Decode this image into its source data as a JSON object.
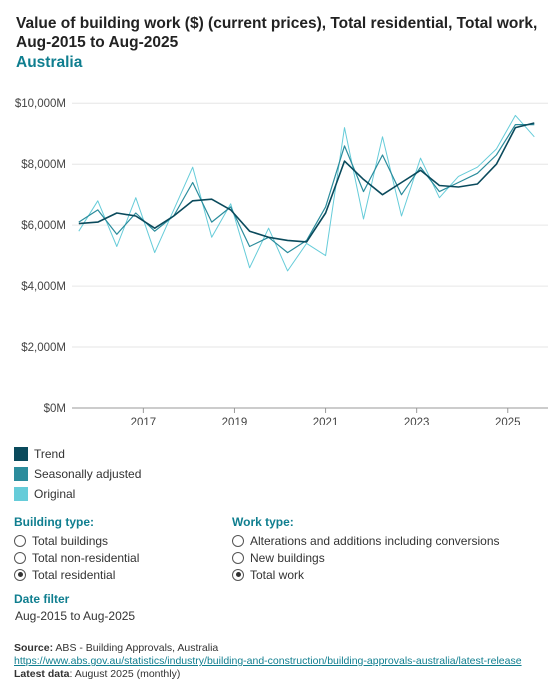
{
  "header": {
    "title": "Value of building work ($) (current prices), Total residential, Total work, Aug-2015 to Aug-2025",
    "subtitle": "Australia"
  },
  "chart_data": {
    "type": "line",
    "x_range": [
      "2015-08",
      "2025-08"
    ],
    "ylim": [
      0,
      10500
    ],
    "y_ticks": [
      {
        "value": 0,
        "label": "$0M"
      },
      {
        "value": 2000,
        "label": "$2,000M"
      },
      {
        "value": 4000,
        "label": "$4,000M"
      },
      {
        "value": 6000,
        "label": "$6,000M"
      },
      {
        "value": 8000,
        "label": "$8,000M"
      },
      {
        "value": 10000,
        "label": "$10,000M"
      }
    ],
    "x_ticks": [
      "2017",
      "2019",
      "2021",
      "2023",
      "2025"
    ],
    "grid": true,
    "legend_position": "bottom-left",
    "series": [
      {
        "name": "Original",
        "color": "#66ccd9",
        "x": [
          "2015-08",
          "2016-01",
          "2016-06",
          "2016-11",
          "2017-04",
          "2017-09",
          "2018-02",
          "2018-07",
          "2018-12",
          "2019-05",
          "2019-10",
          "2020-03",
          "2020-08",
          "2021-01",
          "2021-06",
          "2021-11",
          "2022-04",
          "2022-09",
          "2023-02",
          "2023-07",
          "2023-12",
          "2024-05",
          "2024-10",
          "2025-03",
          "2025-08"
        ],
        "values": [
          5800,
          6800,
          5300,
          6900,
          5100,
          6500,
          7900,
          5600,
          6700,
          4600,
          5900,
          4500,
          5400,
          5000,
          9200,
          6200,
          8900,
          6300,
          8200,
          6900,
          7600,
          7900,
          8500,
          9600,
          8900
        ]
      },
      {
        "name": "Seasonally adjusted",
        "color": "#2b8c9c",
        "x": [
          "2015-08",
          "2016-01",
          "2016-06",
          "2016-11",
          "2017-04",
          "2017-09",
          "2018-02",
          "2018-07",
          "2018-12",
          "2019-05",
          "2019-10",
          "2020-03",
          "2020-08",
          "2021-01",
          "2021-06",
          "2021-11",
          "2022-04",
          "2022-09",
          "2023-02",
          "2023-07",
          "2023-12",
          "2024-05",
          "2024-10",
          "2025-03",
          "2025-08"
        ],
        "values": [
          6100,
          6500,
          5700,
          6400,
          5800,
          6300,
          7400,
          6100,
          6600,
          5300,
          5600,
          5100,
          5500,
          6600,
          8600,
          7100,
          8300,
          7000,
          7900,
          7100,
          7400,
          7700,
          8300,
          9300,
          9300
        ]
      },
      {
        "name": "Trend",
        "color": "#0a4a5c",
        "x": [
          "2015-08",
          "2016-01",
          "2016-06",
          "2016-11",
          "2017-04",
          "2017-09",
          "2018-02",
          "2018-07",
          "2018-12",
          "2019-05",
          "2019-10",
          "2020-03",
          "2020-08",
          "2021-01",
          "2021-06",
          "2021-11",
          "2022-04",
          "2022-09",
          "2023-02",
          "2023-07",
          "2023-12",
          "2024-05",
          "2024-10",
          "2025-03",
          "2025-08"
        ],
        "values": [
          6050,
          6100,
          6400,
          6300,
          5900,
          6300,
          6800,
          6850,
          6500,
          5800,
          5600,
          5500,
          5450,
          6400,
          8100,
          7500,
          7000,
          7400,
          7800,
          7300,
          7250,
          7350,
          8000,
          9200,
          9350
        ]
      }
    ]
  },
  "legend": {
    "items": [
      {
        "label": "Trend",
        "color": "#0a4a5c"
      },
      {
        "label": "Seasonally adjusted",
        "color": "#2b8c9c"
      },
      {
        "label": "Original",
        "color": "#66ccd9"
      }
    ]
  },
  "filters": {
    "building_type": {
      "heading": "Building type:",
      "options": [
        {
          "label": "Total buildings",
          "checked": false
        },
        {
          "label": "Total non-residential",
          "checked": false
        },
        {
          "label": "Total residential",
          "checked": true
        }
      ]
    },
    "work_type": {
      "heading": "Work type:",
      "options": [
        {
          "label": "Alterations and additions including conversions",
          "checked": false
        },
        {
          "label": "New buildings",
          "checked": false
        },
        {
          "label": "Total work",
          "checked": true
        }
      ]
    },
    "date": {
      "heading": "Date filter",
      "value": "Aug-2015 to Aug-2025"
    }
  },
  "footer": {
    "source_label": "Source:",
    "source_text": " ABS - Building Approvals, Australia",
    "url": "https://www.abs.gov.au/statistics/industry/building-and-construction/building-approvals-australia/latest-release",
    "latest_label": "Latest data",
    "latest_text": ": August 2025 (monthly)"
  }
}
